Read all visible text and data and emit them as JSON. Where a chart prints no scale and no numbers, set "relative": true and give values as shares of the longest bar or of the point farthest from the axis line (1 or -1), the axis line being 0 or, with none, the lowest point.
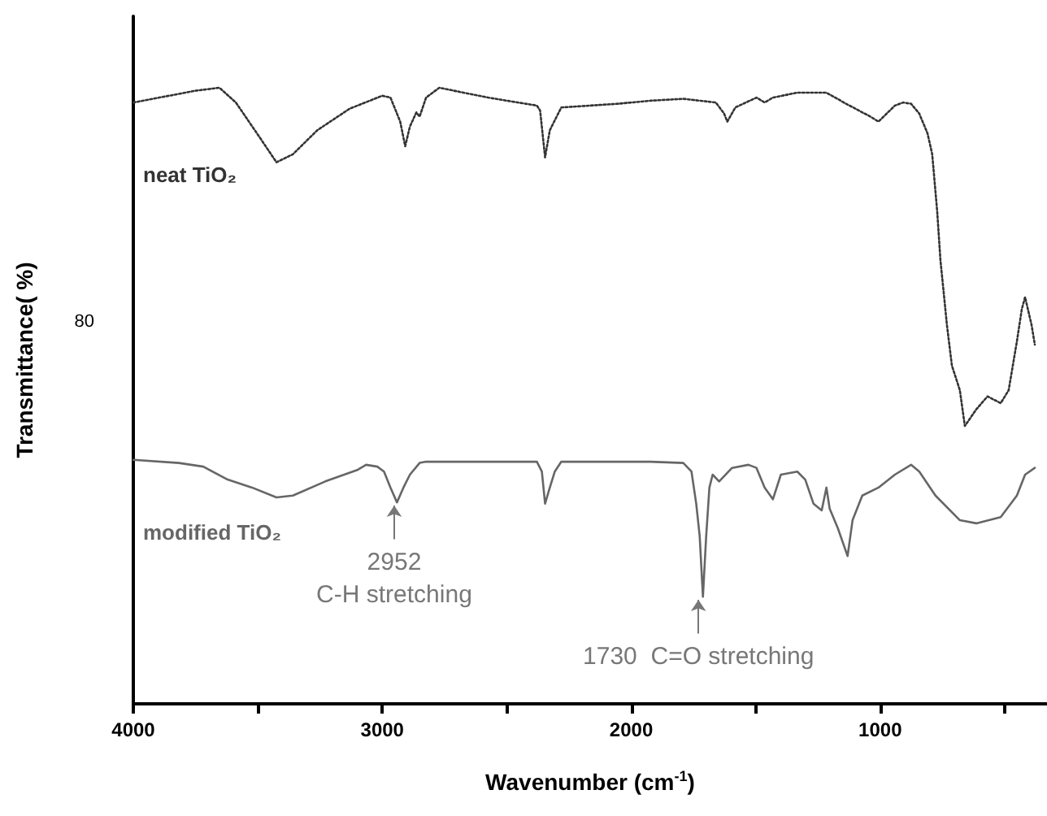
{
  "chart_data": {
    "type": "line",
    "relative": true,
    "xlabel": "Wavenumber (cm$^{-1}$)",
    "ylabel": "Transmittance( %)",
    "xlim": [
      4000,
      330
    ],
    "xticks": [
      4000,
      {
        "value": 3500,
        "label": null
      },
      3000,
      {
        "value": 2500,
        "label": null
      },
      2000,
      {
        "value": 1500,
        "label": null
      },
      1000,
      {
        "value": 500,
        "label": null
      }
    ],
    "grid": false,
    "legend": false,
    "marker": "none",
    "series": [
      {
        "name": "neat TiO₂",
        "color": "#333333",
        "line_style": "dotted",
        "x": [
          4000,
          3752,
          3654,
          3588,
          3490,
          3425,
          3359,
          3261,
          3131,
          3000,
          2967,
          2928,
          2908,
          2889,
          2863,
          2850,
          2824,
          2771,
          2575,
          2379,
          2366,
          2346,
          2327,
          2281,
          2052,
          1922,
          1791,
          1660,
          1627,
          1614,
          1582,
          1497,
          1464,
          1431,
          1333,
          1216,
          1137,
          1039,
          1007,
          941,
          908,
          876,
          843,
          810,
          791,
          771,
          758,
          745,
          732,
          712,
          680,
          660,
          614,
          569,
          516,
          484,
          451,
          431,
          418,
          392,
          379
        ],
        "values": [
          0.976,
          0.995,
          1,
          0.976,
          0.918,
          0.879,
          0.892,
          0.931,
          0.966,
          0.987,
          0.984,
          0.945,
          0.905,
          0.937,
          0.96,
          0.953,
          0.984,
          1,
          0.984,
          0.971,
          0.963,
          0.887,
          0.931,
          0.968,
          0.974,
          0.979,
          0.982,
          0.976,
          0.958,
          0.945,
          0.968,
          0.984,
          0.976,
          0.984,
          0.992,
          0.992,
          0.974,
          0.953,
          0.945,
          0.971,
          0.976,
          0.974,
          0.958,
          0.926,
          0.892,
          0.799,
          0.72,
          0.668,
          0.615,
          0.549,
          0.509,
          0.451,
          0.478,
          0.499,
          0.488,
          0.509,
          0.588,
          0.641,
          0.66,
          0.615,
          0.583
        ]
      },
      {
        "name": "modified TiO₂",
        "color": "#666666",
        "line_style": "solid",
        "x": [
          4000,
          3817,
          3719,
          3621,
          3523,
          3425,
          3359,
          3229,
          3098,
          3065,
          3020,
          2993,
          2967,
          2941,
          2915,
          2889,
          2850,
          2824,
          2575,
          2379,
          2359,
          2346,
          2327,
          2307,
          2281,
          2052,
          1922,
          1791,
          1758,
          1739,
          1725,
          1712,
          1699,
          1686,
          1673,
          1647,
          1595,
          1529,
          1497,
          1464,
          1431,
          1399,
          1333,
          1301,
          1268,
          1235,
          1216,
          1203,
          1170,
          1131,
          1111,
          1072,
          1007,
          941,
          876,
          843,
          778,
          680,
          614,
          516,
          451,
          418,
          379
        ],
        "values": [
          0.396,
          0.391,
          0.385,
          0.364,
          0.351,
          0.335,
          0.338,
          0.361,
          0.38,
          0.388,
          0.385,
          0.377,
          0.351,
          0.327,
          0.351,
          0.372,
          0.391,
          0.393,
          0.393,
          0.393,
          0.377,
          0.325,
          0.351,
          0.377,
          0.393,
          0.393,
          0.393,
          0.391,
          0.377,
          0.325,
          0.272,
          0.174,
          0.272,
          0.351,
          0.372,
          0.361,
          0.383,
          0.388,
          0.383,
          0.351,
          0.332,
          0.372,
          0.377,
          0.364,
          0.325,
          0.314,
          0.351,
          0.317,
          0.285,
          0.24,
          0.298,
          0.338,
          0.351,
          0.372,
          0.388,
          0.377,
          0.338,
          0.298,
          0.293,
          0.303,
          0.338,
          0.372,
          0.383
        ]
      }
    ],
    "annotations": [
      "80",
      {
        "text": "2952\nC-H stretching",
        "x": 2952,
        "y": 0.327
      },
      {
        "text": "1730  C=O stretching",
        "x": 1730,
        "y": 0.174
      }
    ]
  }
}
